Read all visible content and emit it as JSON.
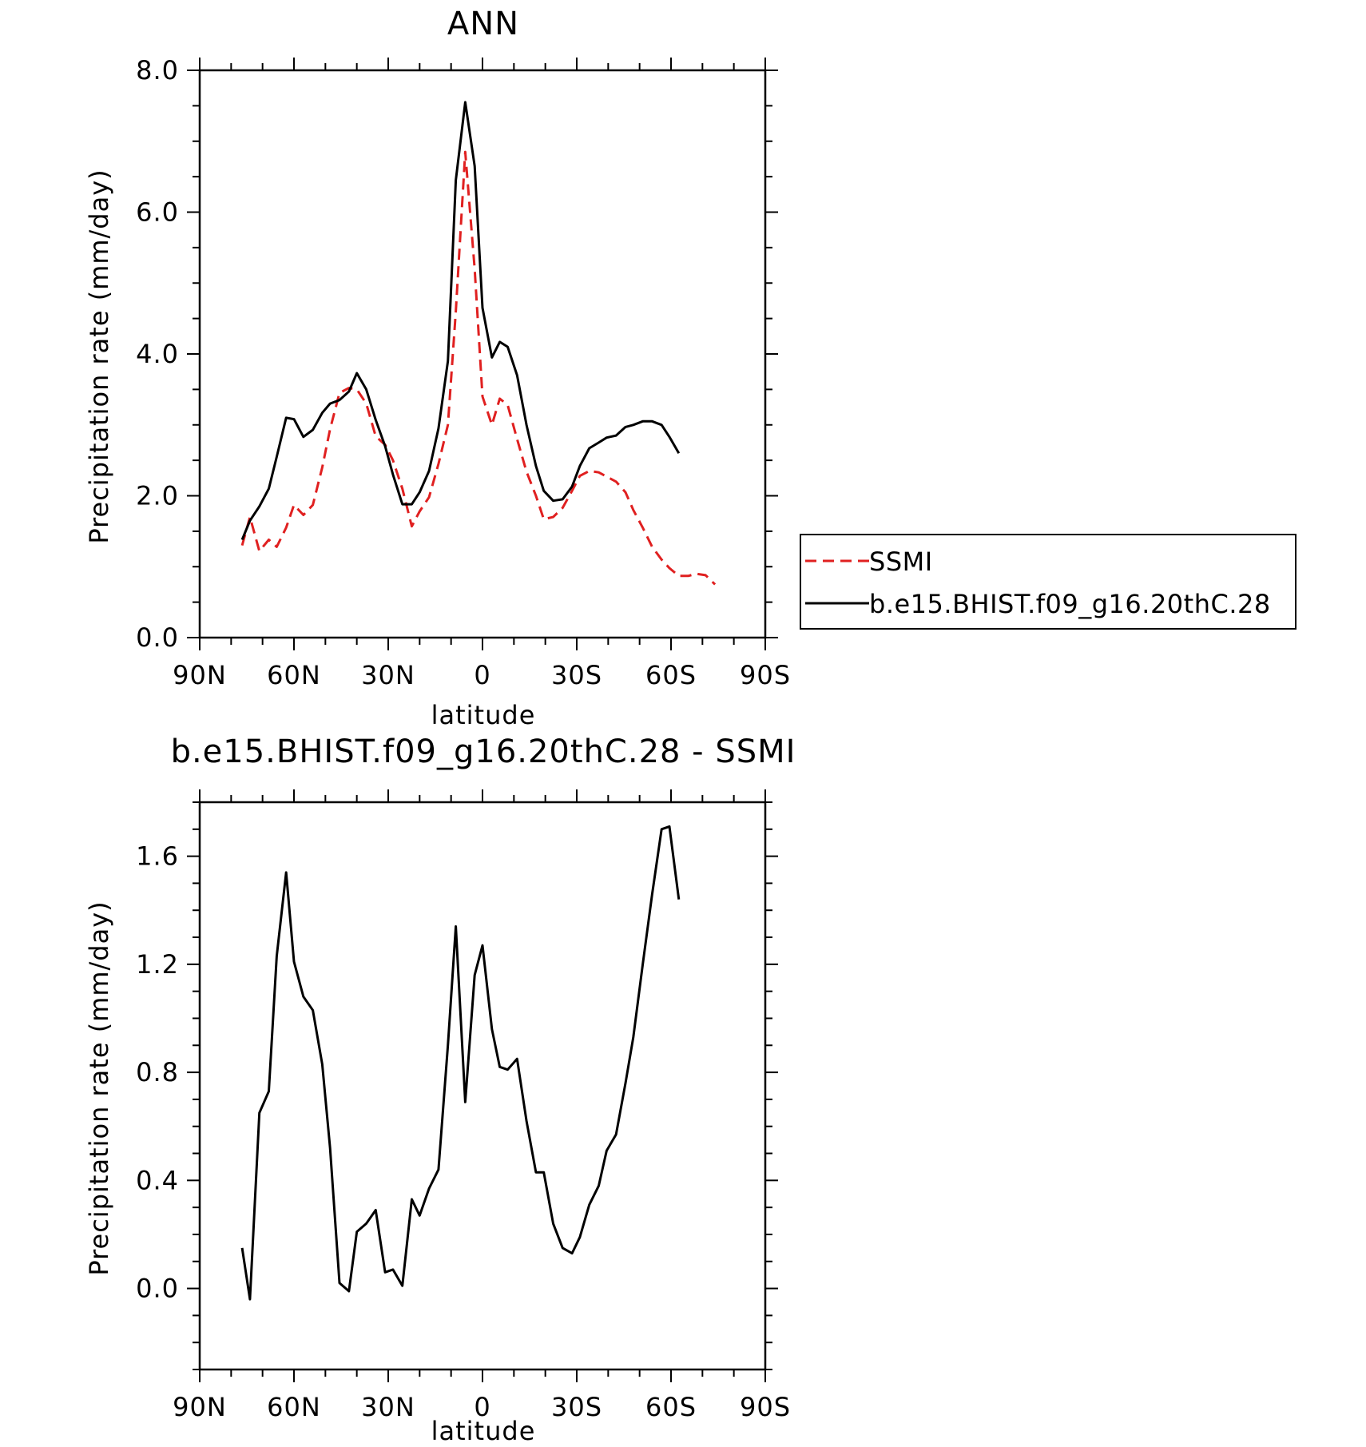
{
  "chart_data": [
    {
      "type": "line",
      "title": "ANN",
      "xlabel": "latitude",
      "ylabel": "Precipitation rate (mm/day)",
      "xlim": [
        90,
        -90
      ],
      "ylim": [
        0,
        8
      ],
      "x_ticks": [
        {
          "value": 90,
          "label": "90N"
        },
        {
          "value": 60,
          "label": "60N"
        },
        {
          "value": 30,
          "label": "30N"
        },
        {
          "value": 0,
          "label": "0"
        },
        {
          "value": -30,
          "label": "30S"
        },
        {
          "value": -60,
          "label": "60S"
        },
        {
          "value": -90,
          "label": "90S"
        }
      ],
      "y_ticks": [
        {
          "value": 0,
          "label": "0.0"
        },
        {
          "value": 2,
          "label": "2.0"
        },
        {
          "value": 4,
          "label": "4.0"
        },
        {
          "value": 6,
          "label": "6.0"
        },
        {
          "value": 8,
          "label": "8.0"
        }
      ],
      "grid": false,
      "legend": {
        "placement": "right",
        "entries": [
          "SSMI",
          "b.e15.BHIST.f09_g16.20thC.28"
        ]
      },
      "series": [
        {
          "name": "SSMI",
          "color": "#e02020",
          "dash": true,
          "x": [
            76.5,
            74,
            71,
            68,
            65.5,
            62.5,
            60,
            57,
            54,
            51,
            48.5,
            45.5,
            42.5,
            40,
            37,
            34,
            31,
            28.5,
            25.5,
            22.5,
            20,
            17,
            14,
            11,
            8.5,
            5.5,
            2.5,
            0,
            -3,
            -5.5,
            -8,
            -11,
            -14,
            -17,
            -19.5,
            -22.5,
            -25.5,
            -28.5,
            -31,
            -34,
            -37,
            -39.5,
            -42.5,
            -45.5,
            -48,
            -51,
            -54,
            -57,
            -59.5,
            -62.5,
            -65.5,
            -68,
            -71,
            -74
          ],
          "y": [
            1.3,
            1.7,
            1.22,
            1.38,
            1.28,
            1.55,
            1.87,
            1.73,
            1.87,
            2.4,
            2.94,
            3.45,
            3.52,
            3.5,
            3.3,
            2.84,
            2.72,
            2.5,
            2.1,
            1.57,
            1.78,
            1.98,
            2.45,
            3.0,
            4.6,
            6.85,
            5.2,
            3.4,
            3.0,
            3.37,
            3.28,
            2.8,
            2.34,
            2.0,
            1.67,
            1.7,
            1.83,
            2.07,
            2.28,
            2.35,
            2.33,
            2.27,
            2.2,
            2.05,
            1.8,
            1.55,
            1.28,
            1.1,
            0.98,
            0.87,
            0.87,
            0.9,
            0.88,
            0.75
          ]
        },
        {
          "name": "b.e15.BHIST.f09_g16.20thC.28",
          "color": "#000000",
          "dash": false,
          "x": [
            76.5,
            74,
            71,
            68,
            65.5,
            62.5,
            60,
            57,
            54,
            51,
            48.5,
            45.5,
            42.5,
            40,
            37,
            34,
            31,
            28.5,
            25.5,
            22.5,
            20,
            17,
            14,
            11,
            8.5,
            5.5,
            2.5,
            0,
            -3,
            -5.5,
            -8,
            -11,
            -14,
            -17,
            -19.5,
            -22.5,
            -25.5,
            -28.5,
            -31,
            -34,
            -37,
            -39.5,
            -42.5,
            -45.5,
            -48,
            -51,
            -54,
            -57,
            -59.5,
            -62.5
          ],
          "y": [
            1.38,
            1.65,
            1.85,
            2.1,
            2.55,
            3.1,
            3.08,
            2.83,
            2.93,
            3.17,
            3.3,
            3.35,
            3.47,
            3.73,
            3.5,
            3.07,
            2.7,
            2.3,
            1.88,
            1.88,
            2.05,
            2.35,
            2.95,
            3.9,
            6.45,
            7.55,
            6.65,
            4.65,
            3.95,
            4.17,
            4.1,
            3.7,
            3.0,
            2.42,
            2.07,
            1.93,
            1.95,
            2.13,
            2.42,
            2.67,
            2.75,
            2.82,
            2.85,
            2.97,
            3.0,
            3.05,
            3.05,
            3.0,
            2.83,
            2.6
          ]
        }
      ]
    },
    {
      "type": "line",
      "title": "b.e15.BHIST.f09_g16.20thC.28 - SSMI",
      "xlabel": "latitude",
      "ylabel": "Precipitation rate (mm/day)",
      "xlim": [
        90,
        -90
      ],
      "ylim": [
        -0.3,
        1.8
      ],
      "x_ticks": [
        {
          "value": 90,
          "label": "90N"
        },
        {
          "value": 60,
          "label": "60N"
        },
        {
          "value": 30,
          "label": "30N"
        },
        {
          "value": 0,
          "label": "0"
        },
        {
          "value": -30,
          "label": "30S"
        },
        {
          "value": -60,
          "label": "60S"
        },
        {
          "value": -90,
          "label": "90S"
        }
      ],
      "y_ticks": [
        {
          "value": 0.0,
          "label": "0.0"
        },
        {
          "value": 0.4,
          "label": "0.4"
        },
        {
          "value": 0.8,
          "label": "0.8"
        },
        {
          "value": 1.2,
          "label": "1.2"
        },
        {
          "value": 1.6,
          "label": "1.6"
        }
      ],
      "grid": false,
      "series": [
        {
          "color": "#000000",
          "dash": false,
          "x": [
            76.5,
            74,
            71,
            68,
            65.5,
            62.5,
            60,
            57,
            54,
            51,
            48.5,
            45.5,
            42.5,
            40,
            37,
            34,
            31,
            28.5,
            25.5,
            22.5,
            20,
            17,
            14,
            11,
            8.5,
            5.5,
            2.5,
            0,
            -3,
            -5.5,
            -8,
            -11,
            -14,
            -17,
            -19.5,
            -22.5,
            -25.5,
            -28.5,
            -31,
            -34,
            -37,
            -39.5,
            -42.5,
            -45.5,
            -48,
            -51,
            -54,
            -57,
            -59.5,
            -62.5
          ],
          "y": [
            0.15,
            -0.04,
            0.65,
            0.73,
            1.23,
            1.54,
            1.21,
            1.08,
            1.03,
            0.83,
            0.52,
            0.02,
            -0.01,
            0.21,
            0.24,
            0.29,
            0.06,
            0.07,
            0.01,
            0.33,
            0.27,
            0.37,
            0.44,
            0.9,
            1.34,
            0.69,
            1.16,
            1.27,
            0.96,
            0.82,
            0.81,
            0.85,
            0.62,
            0.43,
            0.43,
            0.24,
            0.15,
            0.13,
            0.19,
            0.31,
            0.38,
            0.51,
            0.57,
            0.76,
            0.93,
            1.2,
            1.46,
            1.7,
            1.71,
            1.44
          ]
        }
      ]
    }
  ]
}
